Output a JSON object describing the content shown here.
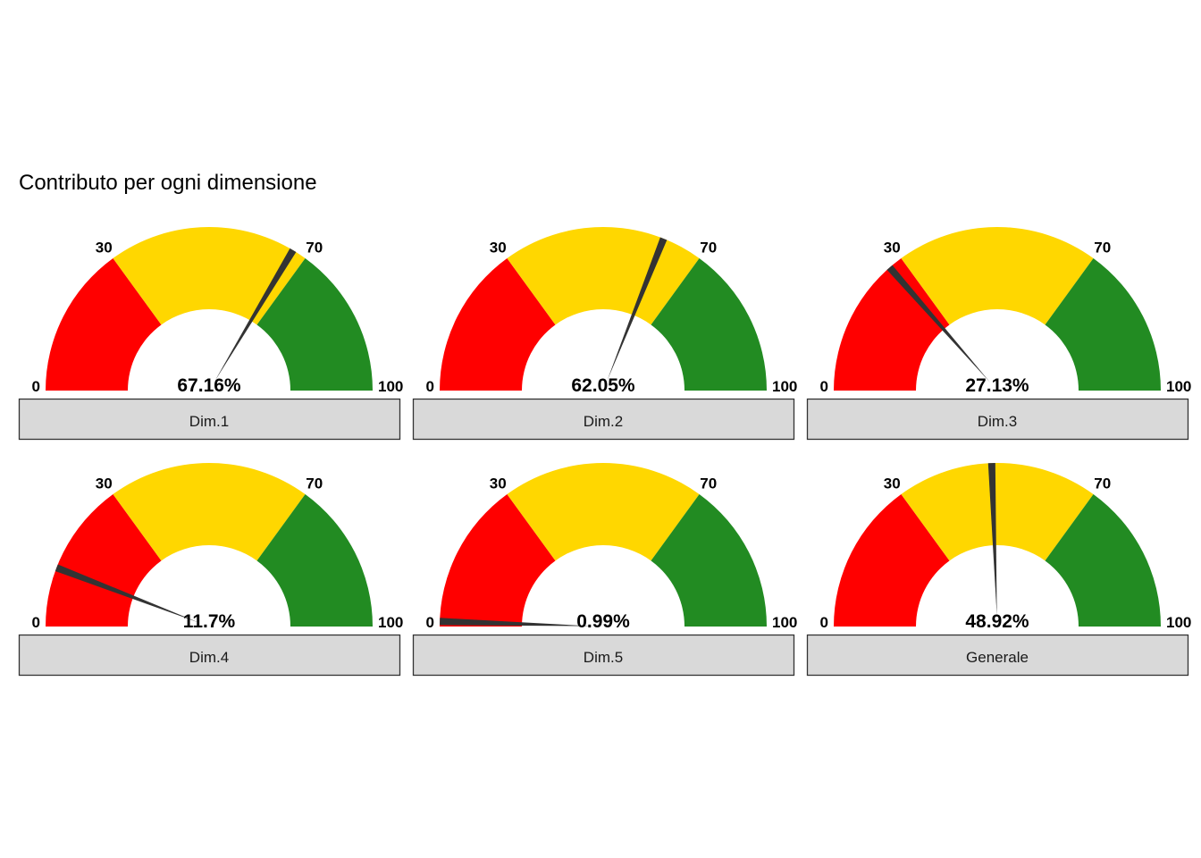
{
  "chart_data": {
    "type": "gauge",
    "title": "Contributo per ogni dimensione",
    "scale": [
      0,
      100
    ],
    "bands": [
      {
        "from": 0,
        "to": 30,
        "color": "#FF0000"
      },
      {
        "from": 30,
        "to": 70,
        "color": "#FFD700"
      },
      {
        "from": 70,
        "to": 100,
        "color": "#228B22"
      }
    ],
    "tick_labels": [
      "0",
      "30",
      "70",
      "100"
    ],
    "needle_color": "#333333",
    "strip_color": "#D9D9D9",
    "panels": [
      {
        "name": "Dim.1",
        "value": 67.16,
        "label": "67.16%"
      },
      {
        "name": "Dim.2",
        "value": 62.05,
        "label": "62.05%"
      },
      {
        "name": "Dim.3",
        "value": 27.13,
        "label": "27.13%"
      },
      {
        "name": "Dim.4",
        "value": 11.7,
        "label": "11.7%"
      },
      {
        "name": "Dim.5",
        "value": 0.99,
        "label": "0.99%"
      },
      {
        "name": "Generale",
        "value": 48.92,
        "label": "48.92%"
      }
    ]
  }
}
